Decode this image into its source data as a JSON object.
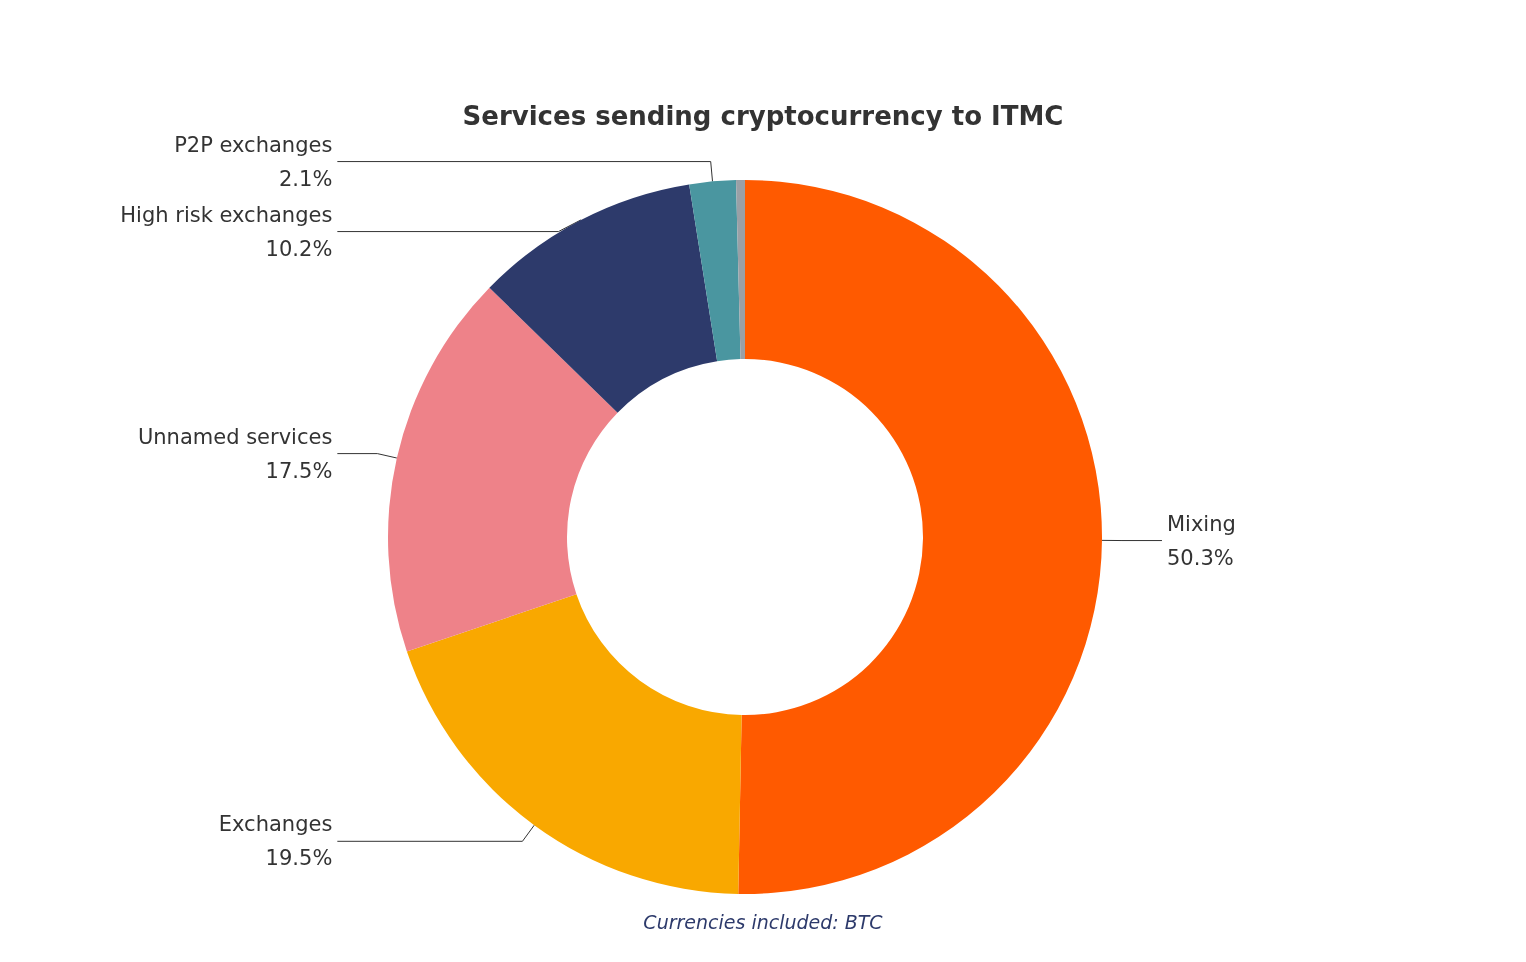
{
  "chart_data": {
    "type": "donut",
    "title": "Services sending cryptocurrency to ITMC",
    "categories": [
      "Mixing",
      "Exchanges",
      "Unnamed services",
      "High risk exchanges",
      "P2P exchanges",
      null
    ],
    "values": [
      50.3,
      19.5,
      17.5,
      10.2,
      2.1,
      0.4
    ],
    "value_labels": [
      "50.3%",
      "19.5%",
      "17.5%",
      "10.2%",
      "2.1%",
      null
    ],
    "colors": [
      "#ff5a00",
      "#f9a800",
      "#ee8289",
      "#2d3a6b",
      "#4a96a0",
      "#9aa0a6"
    ],
    "annotations": [
      "Currencies included: BTC"
    ],
    "legend": false
  }
}
